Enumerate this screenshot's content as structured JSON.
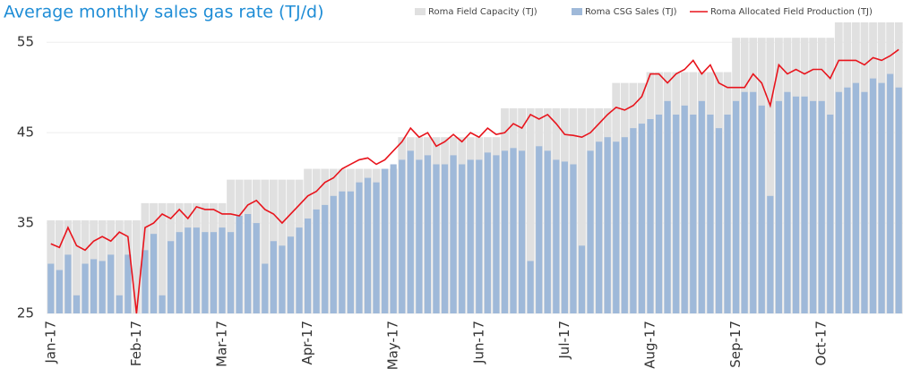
{
  "chart_data": {
    "type": "bar",
    "title": "Average monthly sales gas rate (TJ/d)",
    "categories": [
      "Jan-17",
      null,
      null,
      null,
      null,
      null,
      null,
      null,
      null,
      null,
      "Feb-17",
      null,
      null,
      null,
      null,
      null,
      null,
      null,
      null,
      null,
      "Mar-17",
      null,
      null,
      null,
      null,
      null,
      null,
      null,
      null,
      null,
      "Apr-17",
      null,
      null,
      null,
      null,
      null,
      null,
      null,
      null,
      null,
      "May-17",
      null,
      null,
      null,
      null,
      null,
      null,
      null,
      null,
      null,
      "Jun-17",
      null,
      null,
      null,
      null,
      null,
      null,
      null,
      null,
      null,
      "Jul-17",
      null,
      null,
      null,
      null,
      null,
      null,
      null,
      null,
      null,
      "Aug-17",
      null,
      null,
      null,
      null,
      null,
      null,
      null,
      null,
      null,
      "Sep-17",
      null,
      null,
      null,
      null,
      null,
      null,
      null,
      null,
      null,
      "Oct-17",
      null,
      null,
      null,
      null,
      null,
      null,
      null,
      null,
      null
    ],
    "series": [
      {
        "name": "Roma Field Capacity (TJ)",
        "type": "bar",
        "color": "#e0e0e0",
        "values": [
          35.3,
          35.3,
          35.3,
          35.3,
          35.3,
          35.3,
          35.3,
          35.3,
          35.3,
          35.3,
          35.3,
          37.2,
          37.2,
          37.2,
          37.2,
          37.2,
          37.2,
          37.2,
          37.2,
          37.2,
          37.2,
          39.8,
          39.8,
          39.8,
          39.8,
          39.8,
          39.8,
          39.8,
          39.8,
          39.8,
          41,
          41,
          41,
          41,
          41,
          41,
          41,
          41,
          41,
          41,
          41,
          44.5,
          44.5,
          44.5,
          44.5,
          44.5,
          44.5,
          44.5,
          44.5,
          44.5,
          44.5,
          44.5,
          44.5,
          47.7,
          47.7,
          47.7,
          47.7,
          47.7,
          47.7,
          47.7,
          47.7,
          47.7,
          47.7,
          47.7,
          47.7,
          47.7,
          50.5,
          50.5,
          50.5,
          50.5,
          51.7,
          51.7,
          51.7,
          51.7,
          51.7,
          51.7,
          51.7,
          51.7,
          51.7,
          51.7,
          55.5,
          55.5,
          55.5,
          55.5,
          55.5,
          55.5,
          55.5,
          55.5,
          55.5,
          55.5,
          55.5,
          55.5,
          57.2,
          57.2,
          57.2,
          57.2,
          57.2,
          57.2,
          57.2,
          57.2
        ]
      },
      {
        "name": "Roma CSG Sales (TJ)",
        "type": "bar",
        "color": "#9fb9d9",
        "values": [
          30.5,
          29.8,
          31.5,
          27,
          30.5,
          31,
          30.8,
          31.5,
          27,
          31.5,
          25,
          32,
          33.8,
          27,
          33,
          34,
          34.5,
          34.5,
          34,
          34,
          34.5,
          34,
          35.8,
          36,
          35,
          30.5,
          33,
          32.5,
          33.5,
          34.5,
          35.5,
          36.5,
          37,
          38,
          38.5,
          38.5,
          39.5,
          40,
          39.5,
          41,
          41.5,
          42,
          43,
          42,
          42.5,
          41.5,
          41.5,
          42.5,
          41.5,
          42,
          42,
          42.8,
          42.5,
          43,
          43.3,
          43,
          30.8,
          43.5,
          43,
          42,
          41.8,
          41.5,
          32.5,
          43,
          44,
          44.5,
          44,
          44.5,
          45.5,
          46,
          46.5,
          47,
          48.5,
          47,
          48,
          47,
          48.5,
          47,
          45.5,
          47,
          48.5,
          49.5,
          49.5,
          48,
          38,
          48.5,
          49.5,
          49,
          49,
          48.5,
          48.5,
          47,
          49.5,
          50,
          50.5,
          49.5,
          51,
          50.5,
          51.5,
          50
        ]
      },
      {
        "name": "Roma Allocated Field Production (TJ)",
        "type": "line",
        "color": "#e8141c",
        "values": [
          32.7,
          32.3,
          34.5,
          32.5,
          32,
          33,
          33.5,
          33,
          34,
          33.5,
          25,
          34.5,
          35,
          36,
          35.5,
          36.5,
          35.5,
          36.8,
          36.5,
          36.5,
          36,
          36,
          35.8,
          37,
          37.5,
          36.5,
          36,
          35,
          36,
          37,
          38,
          38.5,
          39.5,
          40,
          41,
          41.5,
          42,
          42.2,
          41.5,
          42,
          43,
          44,
          45.5,
          44.5,
          45,
          43.5,
          44,
          44.8,
          44,
          45,
          44.5,
          45.5,
          44.8,
          45,
          46,
          45.5,
          47,
          46.5,
          47,
          46,
          44.8,
          44.7,
          44.5,
          45,
          46,
          47,
          47.8,
          47.5,
          48,
          49,
          51.5,
          51.5,
          50.5,
          51.5,
          52,
          53,
          51.5,
          52.5,
          50.5,
          50,
          50,
          50,
          51.5,
          50.5,
          48,
          52.5,
          51.5,
          52,
          51.5,
          52,
          52,
          51,
          53,
          53,
          53,
          52.5,
          53.3,
          53,
          53.5,
          54.2
        ]
      }
    ],
    "ylim": [
      25,
      57.5
    ],
    "yticks": [
      25,
      35,
      45,
      55
    ],
    "grid": true
  }
}
